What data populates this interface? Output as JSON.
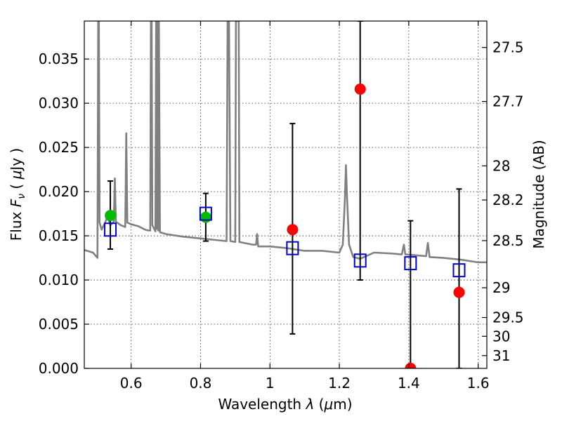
{
  "chart_data": {
    "type": "scatter",
    "xlabel": "Wavelength",
    "xlabel_symbol": "λ",
    "xlabel_unit_open": " (",
    "xlabel_unit_mu": "μ",
    "xlabel_unit_close": "m)",
    "ylabel_prefix": "Flux",
    "ylabel_symbol": "F",
    "ylabel_subscript": "ν",
    "ylabel_unit_open": " ( ",
    "ylabel_unit_mu": "μ",
    "ylabel_unit_close": "Jy )",
    "y2label": "Magnitude (AB)",
    "xlim": [
      0.465,
      1.625
    ],
    "ylim": [
      0.0,
      0.0393
    ],
    "grid": true,
    "x_ticks": [
      {
        "value": 0.6,
        "label": "0.6"
      },
      {
        "value": 0.8,
        "label": "0.8"
      },
      {
        "value": 1.0,
        "label": "1"
      },
      {
        "value": 1.2,
        "label": "1.2"
      },
      {
        "value": 1.4,
        "label": "1.4"
      },
      {
        "value": 1.6,
        "label": "1.6"
      }
    ],
    "y_ticks": [
      {
        "value": 0.0,
        "label": "0.000"
      },
      {
        "value": 0.005,
        "label": "0.005"
      },
      {
        "value": 0.01,
        "label": "0.010"
      },
      {
        "value": 0.015,
        "label": "0.015"
      },
      {
        "value": 0.02,
        "label": "0.020"
      },
      {
        "value": 0.025,
        "label": "0.025"
      },
      {
        "value": 0.03,
        "label": "0.030"
      },
      {
        "value": 0.035,
        "label": "0.035"
      }
    ],
    "y2_ticks": [
      {
        "value": 27.5,
        "label": "27.5"
      },
      {
        "value": 27.7,
        "label": "27.7"
      },
      {
        "value": 28.0,
        "label": "28"
      },
      {
        "value": 28.2,
        "label": "28.2"
      },
      {
        "value": 28.5,
        "label": "28.5"
      },
      {
        "value": 29.0,
        "label": "29"
      },
      {
        "value": 29.5,
        "label": "29.5"
      },
      {
        "value": 30.0,
        "label": "30"
      },
      {
        "value": 31.0,
        "label": "31"
      }
    ],
    "series": [
      {
        "name": "model-spectrum",
        "kind": "line",
        "color": "#808080",
        "points": [
          [
            0.465,
            0.0134
          ],
          [
            0.49,
            0.0131
          ],
          [
            0.503,
            0.0125
          ],
          [
            0.505,
            0.0393
          ],
          [
            0.507,
            0.0393
          ],
          [
            0.509,
            0.0165
          ],
          [
            0.515,
            0.0157
          ],
          [
            0.52,
            0.0161
          ],
          [
            0.525,
            0.0165
          ],
          [
            0.53,
            0.017
          ],
          [
            0.536,
            0.0167
          ],
          [
            0.54,
            0.0162
          ],
          [
            0.55,
            0.0166
          ],
          [
            0.553,
            0.0215
          ],
          [
            0.556,
            0.0166
          ],
          [
            0.57,
            0.0162
          ],
          [
            0.583,
            0.016
          ],
          [
            0.586,
            0.0266
          ],
          [
            0.589,
            0.0165
          ],
          [
            0.6,
            0.0163
          ],
          [
            0.62,
            0.0161
          ],
          [
            0.64,
            0.0157
          ],
          [
            0.65,
            0.0156
          ],
          [
            0.655,
            0.0156
          ],
          [
            0.657,
            0.0393
          ],
          [
            0.659,
            0.0393
          ],
          [
            0.661,
            0.0162
          ],
          [
            0.67,
            0.0155
          ],
          [
            0.672,
            0.0393
          ],
          [
            0.674,
            0.0158
          ],
          [
            0.676,
            0.0393
          ],
          [
            0.678,
            0.0156
          ],
          [
            0.68,
            0.0393
          ],
          [
            0.683,
            0.0154
          ],
          [
            0.7,
            0.0152
          ],
          [
            0.75,
            0.0149
          ],
          [
            0.8,
            0.0147
          ],
          [
            0.85,
            0.0145
          ],
          [
            0.875,
            0.0144
          ],
          [
            0.878,
            0.0393
          ],
          [
            0.882,
            0.0393
          ],
          [
            0.886,
            0.0144
          ],
          [
            0.9,
            0.0143
          ],
          [
            0.902,
            0.0393
          ],
          [
            0.91,
            0.0393
          ],
          [
            0.912,
            0.0143
          ],
          [
            0.95,
            0.014
          ],
          [
            0.96,
            0.014
          ],
          [
            0.963,
            0.0152
          ],
          [
            0.966,
            0.0138
          ],
          [
            1.0,
            0.0138
          ],
          [
            1.05,
            0.0136
          ],
          [
            1.1,
            0.0133
          ],
          [
            1.15,
            0.0133
          ],
          [
            1.2,
            0.0131
          ],
          [
            1.21,
            0.014
          ],
          [
            1.216,
            0.0192
          ],
          [
            1.219,
            0.023
          ],
          [
            1.222,
            0.0195
          ],
          [
            1.228,
            0.014
          ],
          [
            1.24,
            0.0126
          ],
          [
            1.26,
            0.0124
          ],
          [
            1.3,
            0.0131
          ],
          [
            1.35,
            0.013
          ],
          [
            1.38,
            0.0129
          ],
          [
            1.386,
            0.014
          ],
          [
            1.39,
            0.0129
          ],
          [
            1.45,
            0.0127
          ],
          [
            1.455,
            0.0142
          ],
          [
            1.46,
            0.0126
          ],
          [
            1.5,
            0.0125
          ],
          [
            1.55,
            0.0123
          ],
          [
            1.6,
            0.012
          ],
          [
            1.625,
            0.012
          ]
        ]
      },
      {
        "name": "model-photometry",
        "kind": "open-square",
        "color": "#0000cc",
        "points": [
          [
            0.54,
            0.0157
          ],
          [
            0.815,
            0.0175
          ],
          [
            1.065,
            0.0136
          ],
          [
            1.26,
            0.0122
          ],
          [
            1.405,
            0.0119
          ],
          [
            1.545,
            0.0111
          ]
        ]
      },
      {
        "name": "observed-measurements",
        "kind": "filled-circle",
        "color": "#ff0000",
        "points": [
          [
            1.065,
            0.0157
          ],
          [
            1.26,
            0.0316
          ],
          [
            1.405,
            0.0
          ],
          [
            1.545,
            0.0086
          ]
        ],
        "errors": [
          {
            "x": 0.54,
            "low": 0.0135,
            "high": 0.0212
          },
          {
            "x": 0.815,
            "low": 0.0144,
            "high": 0.0198
          },
          {
            "x": 1.065,
            "low": 0.0039,
            "high": 0.0277
          },
          {
            "x": 1.26,
            "low": 0.01,
            "high": 0.0393
          },
          {
            "x": 1.405,
            "low": 0.0,
            "high": 0.0167
          },
          {
            "x": 1.545,
            "low": 0.0,
            "high": 0.0203
          }
        ]
      },
      {
        "name": "detected-measurements",
        "kind": "filled-circle",
        "color": "#00bb00",
        "points": [
          [
            0.54,
            0.0173
          ],
          [
            0.815,
            0.0171
          ]
        ]
      }
    ]
  }
}
